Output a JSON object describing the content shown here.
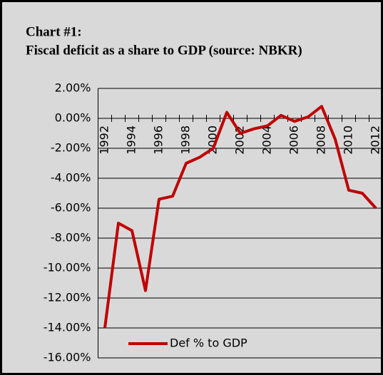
{
  "chart_data": {
    "type": "line",
    "title": "Chart #1:",
    "subtitle": "Fiscal deficit as a share to GDP (source: NBKR)",
    "categories": [
      "1992",
      null,
      "1994",
      null,
      "1996",
      null,
      "1998",
      null,
      "2000",
      null,
      "2002",
      null,
      "2004",
      null,
      "2006",
      null,
      "2008",
      null,
      "2010",
      null,
      "2012"
    ],
    "series": [
      {
        "name": "Def % to GDP",
        "color": "#c00000",
        "values": [
          -14,
          -7.0,
          -7.5,
          -11.5,
          -5.4,
          -5.2,
          -3.0,
          -2.6,
          -2.0,
          0.4,
          -1.0,
          -0.7,
          -0.5,
          0.2,
          -0.2,
          0.1,
          0.8,
          -1.4,
          -4.8,
          -5.0,
          -6.0
        ]
      }
    ],
    "ylim": [
      -16,
      2
    ],
    "yticks": [
      {
        "value": -16,
        "label": "-16.00%"
      },
      {
        "value": -14,
        "label": "-14.00%"
      },
      {
        "value": -12,
        "label": "-12.00%"
      },
      {
        "value": -10,
        "label": "-10.00%"
      },
      {
        "value": -8,
        "label": "-8.00%"
      },
      {
        "value": -6,
        "label": "-6.00%"
      },
      {
        "value": -4,
        "label": "-4.00%"
      },
      {
        "value": -2,
        "label": "-2.00%"
      },
      {
        "value": 0,
        "label": "0.00%"
      },
      {
        "value": 2,
        "label": "2.00%"
      }
    ],
    "grid": true,
    "legend": "lower left"
  }
}
